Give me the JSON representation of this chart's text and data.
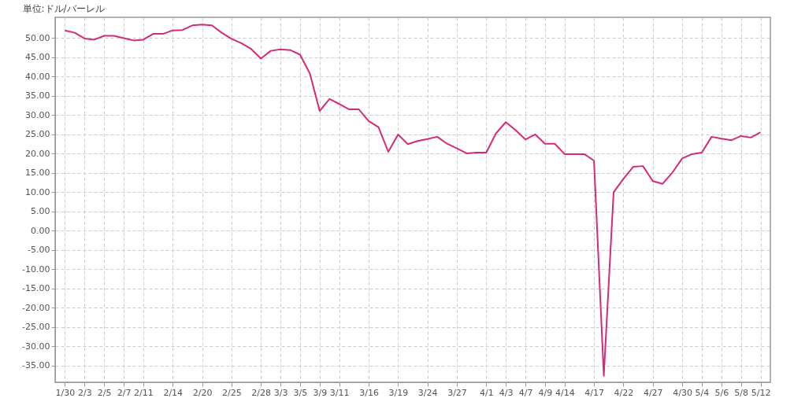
{
  "chart_data": {
    "type": "line",
    "ylabel": "単位:ドル/バーレル",
    "categories": [
      "1/30",
      null,
      "2/3",
      null,
      "2/5",
      null,
      "2/7",
      null,
      "2/11",
      null,
      null,
      "2/14",
      null,
      null,
      "2/20",
      null,
      null,
      "2/25",
      null,
      null,
      "2/28",
      null,
      "3/3",
      null,
      "3/5",
      null,
      "3/9",
      null,
      "3/11",
      null,
      null,
      "3/16",
      null,
      null,
      "3/19",
      null,
      null,
      "3/24",
      null,
      null,
      "3/27",
      null,
      null,
      "4/1",
      null,
      "4/3",
      null,
      "4/7",
      null,
      "4/9",
      null,
      "4/14",
      null,
      null,
      "4/17",
      null,
      null,
      "4/22",
      null,
      null,
      "4/27",
      null,
      null,
      "4/30",
      null,
      "5/4",
      null,
      "5/6",
      null,
      "5/8",
      null,
      "5/12"
    ],
    "series": [
      {
        "color": "#d42a78",
        "values": [
          52.0,
          51.4,
          49.9,
          49.6,
          50.6,
          50.6,
          50.0,
          49.4,
          49.6,
          51.1,
          51.1,
          52.0,
          52.1,
          53.3,
          53.5,
          53.3,
          51.4,
          49.8,
          48.7,
          47.2,
          44.7,
          46.7,
          47.1,
          46.9,
          45.7,
          40.8,
          31.1,
          34.2,
          32.9,
          31.5,
          31.5,
          28.5,
          26.9,
          20.5,
          25.0,
          22.5,
          23.3,
          23.8,
          24.4,
          22.6,
          21.4,
          20.1,
          20.3,
          20.3,
          25.3,
          28.2,
          26.1,
          23.7,
          25.0,
          22.6,
          22.6,
          19.9,
          19.9,
          19.9,
          18.2,
          -37.6,
          10.0,
          13.5,
          16.6,
          16.8,
          12.9,
          12.2,
          15.1,
          18.8,
          19.9,
          20.3,
          24.4,
          23.9,
          23.5,
          24.6,
          24.2,
          25.6
        ]
      }
    ],
    "ylim": [
      -39.3,
      55.4
    ],
    "yticks": [
      {
        "value": -35,
        "label": "-35.00"
      },
      {
        "value": -30,
        "label": "-30.00"
      },
      {
        "value": -25,
        "label": "-25.00"
      },
      {
        "value": -20,
        "label": "-20.00"
      },
      {
        "value": -15,
        "label": "-15.00"
      },
      {
        "value": -10,
        "label": "-10.00"
      },
      {
        "value": -5,
        "label": "-5.00"
      },
      {
        "value": 0,
        "label": "0.00"
      },
      {
        "value": 5,
        "label": "5.00"
      },
      {
        "value": 10,
        "label": "10.00"
      },
      {
        "value": 15,
        "label": "15.00"
      },
      {
        "value": 20,
        "label": "20.00"
      },
      {
        "value": 25,
        "label": "25.00"
      },
      {
        "value": 30,
        "label": "30.00"
      },
      {
        "value": 35,
        "label": "35.00"
      },
      {
        "value": 40,
        "label": "40.00"
      },
      {
        "value": 45,
        "label": "45.00"
      },
      {
        "value": 50,
        "label": "50.00"
      }
    ],
    "grid": true,
    "marker": "none",
    "line_style": "solid"
  }
}
